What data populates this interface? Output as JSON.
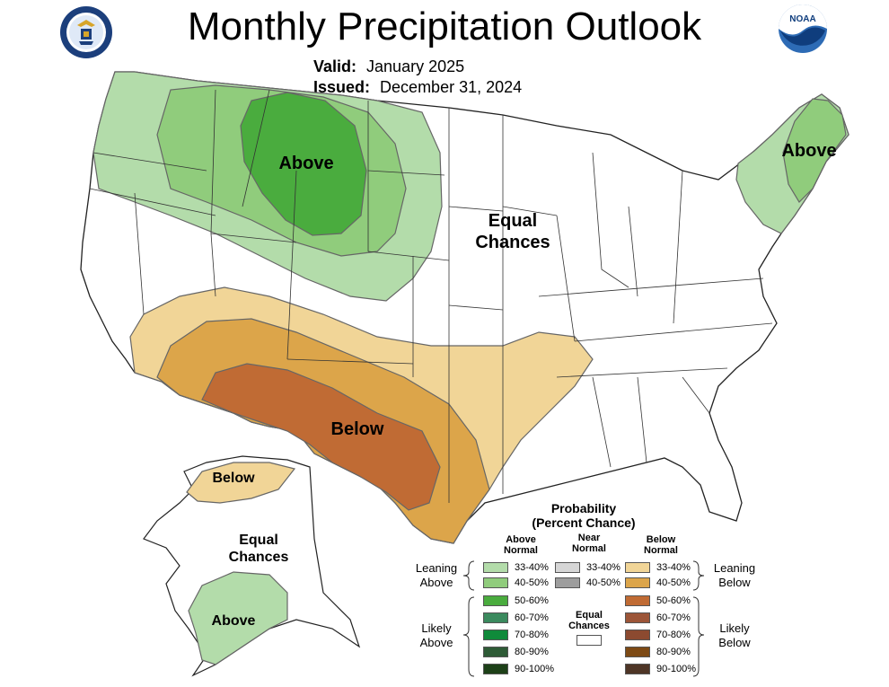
{
  "title": "Monthly Precipitation Outlook",
  "valid_label": "Valid:",
  "valid_value": "January 2025",
  "issued_label": "Issued:",
  "issued_value": "December 31, 2024",
  "noaa_text": "NOAA",
  "map_labels": {
    "above_north": "Above",
    "above_ne": "Above",
    "equal_1": "Equal",
    "equal_2": "Chances",
    "below_south": "Below",
    "ak_below": "Below",
    "ak_equal_1": "Equal",
    "ak_equal_2": "Chances",
    "ak_above": "Above"
  },
  "legend": {
    "title_1": "Probability",
    "title_2": "(Percent Chance)",
    "col_above_1": "Above",
    "col_above_2": "Normal",
    "col_near_1": "Near",
    "col_near_2": "Normal",
    "col_below_1": "Below",
    "col_below_2": "Normal",
    "leaning_above_1": "Leaning",
    "leaning_above_2": "Above",
    "leaning_below_1": "Leaning",
    "leaning_below_2": "Below",
    "likely_above_1": "Likely",
    "likely_above_2": "Above",
    "likely_below_1": "Likely",
    "likely_below_2": "Below",
    "ec_1": "Equal",
    "ec_2": "Chances",
    "above_ranges": [
      "33-40%",
      "40-50%",
      "50-60%",
      "60-70%",
      "70-80%",
      "80-90%",
      "90-100%"
    ],
    "near_ranges": [
      "33-40%",
      "40-50%"
    ],
    "below_ranges": [
      "33-40%",
      "40-50%",
      "50-60%",
      "60-70%",
      "70-80%",
      "80-90%",
      "90-100%"
    ],
    "above_colors": [
      "#b3dcaa",
      "#90cc7c",
      "#4aac3e",
      "#3b8a5e",
      "#0f8a3a",
      "#2e5b36",
      "#1d4018"
    ],
    "near_colors": [
      "#d6d6d6",
      "#9d9d9d"
    ],
    "below_colors": [
      "#f1d597",
      "#dca54a",
      "#c06b34",
      "#9c5538",
      "#8c4a30",
      "#7d4a15",
      "#4e3526"
    ]
  }
}
